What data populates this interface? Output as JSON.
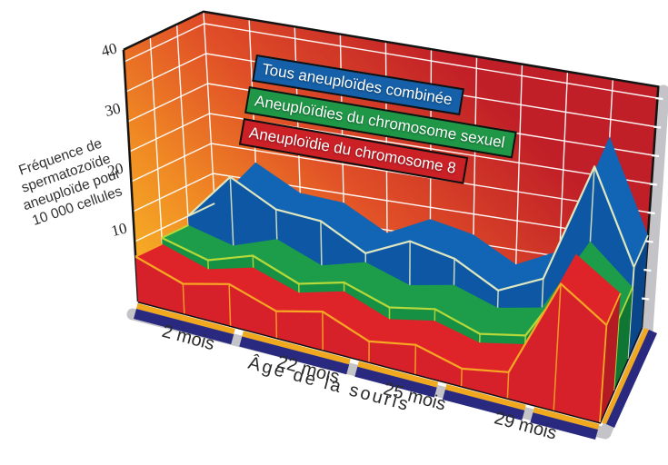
{
  "chart_data": {
    "type": "area",
    "variant": "3d-ribbon",
    "title": "",
    "x_axis": {
      "title": "Âge de la souris",
      "points": 11,
      "groups": [
        {
          "label": "2 mois",
          "center": 1.0
        },
        {
          "label": "22 mois",
          "center": 3.6
        },
        {
          "label": "25 mois",
          "center": 5.9
        },
        {
          "label": "29 mois",
          "center": 8.3
        }
      ],
      "tick_gaps": [
        2.2,
        4.7,
        6.6,
        8.5
      ]
    },
    "y_axis": {
      "title_lines": [
        "Fréquence de",
        "spermatozoïde",
        "aneuploïde pour",
        "10 000 cellules"
      ],
      "ticks": [
        40,
        30,
        20,
        10
      ],
      "max": 42,
      "grid_step": 5
    },
    "series": [
      {
        "name": "Tous aneuploïdes combinée",
        "values": [
          10,
          18,
          14,
          13.5,
          9.5,
          13,
          11.5,
          7.5,
          11,
          32,
          16
        ],
        "colors": {
          "top": "#1265b5",
          "front": "#0d57a4",
          "cap": "#0a478a",
          "line": "#dfe7c0",
          "legend": "#1560a8"
        }
      },
      {
        "name": "Aneuploïdies du chromosome sexuel",
        "values": [
          8.5,
          6.5,
          9,
          6,
          8,
          5.5,
          7,
          4.5,
          6,
          19,
          12.5
        ],
        "colors": {
          "top": "#1d9d49",
          "front": "#169143",
          "cap": "#0f7634",
          "line": "#b5d83a",
          "legend": "#1f9747"
        }
      },
      {
        "name": "Aneuploïdie du chromosome 8",
        "values": [
          7.5,
          5,
          7,
          4.5,
          6.5,
          3.5,
          5,
          3,
          4.5,
          22,
          17
        ],
        "colors": {
          "top": "#df2429",
          "front": "#d6202a",
          "cap": "#b51b22",
          "line": "#f7a723",
          "legend": "#cc2027"
        }
      }
    ],
    "palette": {
      "wall_gradient": [
        "#f9bc26",
        "#f08a24",
        "#e04f27",
        "#c01f27"
      ],
      "grid": "#ffffff",
      "floor": "#29297f",
      "floor_stripe": "#f0a81f",
      "edge": "#141414",
      "shadow": "#c4c4c8"
    }
  },
  "legend": {
    "items": [
      {
        "label": "Tous aneuploïdes combinée"
      },
      {
        "label": "Aneuploïdies du chromosome sexuel"
      },
      {
        "label": "Aneuploïdie du chromosome 8"
      }
    ]
  }
}
